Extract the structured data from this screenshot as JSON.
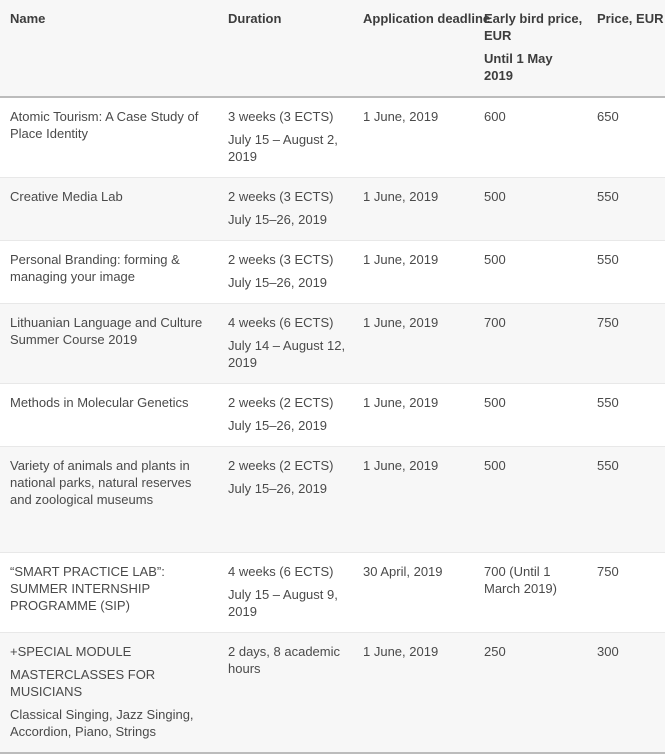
{
  "colors": {
    "row_alt_background": "#f7f7f7",
    "row_separator": "#e8e8e8",
    "heavy_rule": "#bcbcbc",
    "text": "#4a4a4a",
    "header_text": "#3d3d3d"
  },
  "table": {
    "columns": [
      {
        "key": "name",
        "label_lines": [
          "Name"
        ]
      },
      {
        "key": "duration",
        "label_lines": [
          "Duration"
        ]
      },
      {
        "key": "deadline",
        "label_lines": [
          "Application deadline"
        ]
      },
      {
        "key": "early_bird",
        "label_lines": [
          "Early bird price, EUR",
          "Until 1 May 2019"
        ]
      },
      {
        "key": "price",
        "label_lines": [
          "Price, EUR"
        ]
      }
    ],
    "rows": [
      {
        "name": [
          "Atomic Tourism: A Case Study of Place Identity"
        ],
        "duration": [
          "3 weeks (3 ECTS)",
          "July 15 – August 2, 2019"
        ],
        "deadline": [
          "1 June, 2019"
        ],
        "early_bird": [
          "600"
        ],
        "price": [
          "650"
        ]
      },
      {
        "name": [
          "Creative Media Lab"
        ],
        "duration": [
          "2 weeks (3 ECTS)",
          "July 15–26, 2019"
        ],
        "deadline": [
          "1 June, 2019"
        ],
        "early_bird": [
          "500"
        ],
        "price": [
          "550"
        ]
      },
      {
        "name": [
          "Personal Branding: forming & managing your image"
        ],
        "duration": [
          "2 weeks (3 ECTS)",
          "July 15–26, 2019"
        ],
        "deadline": [
          "1 June, 2019"
        ],
        "early_bird": [
          "500"
        ],
        "price": [
          "550"
        ]
      },
      {
        "name": [
          "Lithuanian Language and Culture Summer Course 2019"
        ],
        "duration": [
          "4 weeks (6 ECTS)",
          "July 14 – August 12, 2019"
        ],
        "deadline": [
          "1 June, 2019"
        ],
        "early_bird": [
          "700"
        ],
        "price": [
          "750"
        ]
      },
      {
        "name": [
          "Methods in Molecular Genetics"
        ],
        "duration": [
          "2 weeks (2 ECTS)",
          "July 15–26, 2019"
        ],
        "deadline": [
          "1 June, 2019"
        ],
        "early_bird": [
          "500"
        ],
        "price": [
          "550"
        ]
      },
      {
        "name": [
          "Variety of animals and plants in national parks, natural reserves and zoological museums"
        ],
        "duration": [
          "2 weeks (2 ECTS)",
          "July 15–26, 2019"
        ],
        "deadline": [
          "1 June, 2019"
        ],
        "early_bird": [
          "500"
        ],
        "price": [
          "550"
        ]
      },
      {
        "name": [
          "“SMART PRACTICE LAB”: SUMMER INTERNSHIP PROGRAMME (SIP)"
        ],
        "duration": [
          "4 weeks (6 ECTS)",
          "July 15 – August 9, 2019"
        ],
        "deadline": [
          "30 April, 2019"
        ],
        "early_bird": [
          "700 (Until 1 March 2019)"
        ],
        "price": [
          "750"
        ]
      },
      {
        "name": [
          "+SPECIAL MODULE",
          "MASTERCLASSES FOR MUSICIANS",
          "Classical Singing, Jazz Singing, Accordion, Piano, Strings"
        ],
        "duration": [
          "2 days, 8 academic hours"
        ],
        "deadline": [
          "1 June, 2019"
        ],
        "early_bird": [
          "250"
        ],
        "price": [
          "300"
        ]
      }
    ]
  }
}
